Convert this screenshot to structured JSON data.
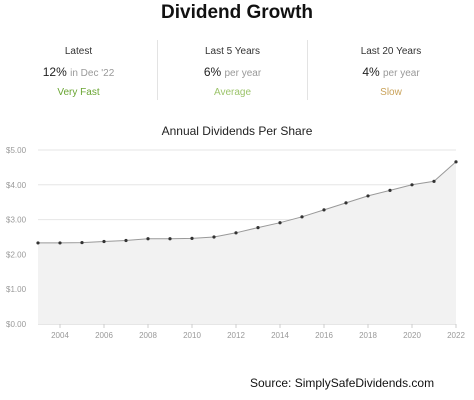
{
  "header": {
    "title": "Dividend Growth"
  },
  "stats": [
    {
      "label": "Latest",
      "value": "12%",
      "sub": "in Dec '22",
      "desc": "Very Fast",
      "desc_color": "#6aa533"
    },
    {
      "label": "Last 5 Years",
      "value": "6%",
      "sub": "per year",
      "desc": "Average",
      "desc_color": "#9cc46b"
    },
    {
      "label": "Last 20 Years",
      "value": "4%",
      "sub": "per year",
      "desc": "Slow",
      "desc_color": "#c9a25a"
    }
  ],
  "chart_data": {
    "type": "area",
    "title": "Annual Dividends Per Share",
    "xlabel": "",
    "ylabel": "",
    "x": [
      2003,
      2004,
      2005,
      2006,
      2007,
      2008,
      2009,
      2010,
      2011,
      2012,
      2013,
      2014,
      2015,
      2016,
      2017,
      2018,
      2019,
      2020,
      2021,
      2022
    ],
    "values": [
      2.33,
      2.33,
      2.34,
      2.37,
      2.4,
      2.45,
      2.45,
      2.46,
      2.5,
      2.62,
      2.77,
      2.91,
      3.08,
      3.28,
      3.48,
      3.68,
      3.84,
      4.0,
      4.1,
      4.66
    ],
    "xlim": [
      2003,
      2022
    ],
    "ylim": [
      0,
      5
    ],
    "x_ticks": [
      "2004",
      "2006",
      "2008",
      "2010",
      "2012",
      "2014",
      "2016",
      "2018",
      "2020",
      "2022"
    ],
    "y_ticks": [
      "$0.00",
      "$1.00",
      "$2.00",
      "$3.00",
      "$4.00",
      "$5.00"
    ],
    "grid": true,
    "line_color": "#999999",
    "fill_color": "#f2f2f2"
  },
  "footer": {
    "source": "Source: SimplySafeDividends.com"
  }
}
